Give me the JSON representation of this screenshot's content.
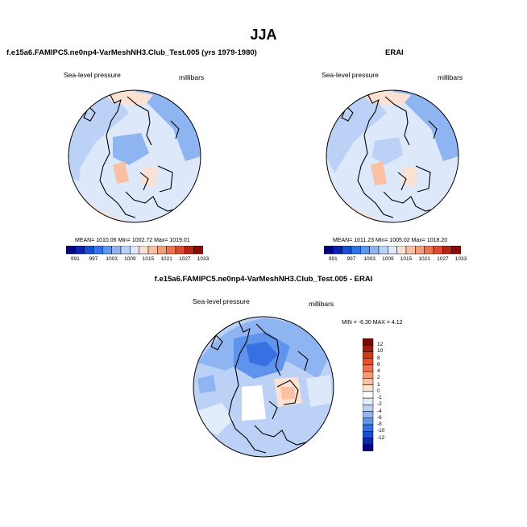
{
  "title": "JJA",
  "colors": {
    "cmap": [
      "#04047e",
      "#0a22b4",
      "#1650d6",
      "#2f73e6",
      "#5f94ee",
      "#8fb4f2",
      "#bcd1f6",
      "#dde8fa",
      "#fbe1d2",
      "#f9c0a4",
      "#f59c78",
      "#ef7350",
      "#dd4a2e",
      "#b52417",
      "#8b0a07"
    ],
    "diff_cmap": [
      "#04047e",
      "#0a2aa8",
      "#1c4fd0",
      "#3670e2",
      "#5f94ee",
      "#8fb4f2",
      "#bcd1f6",
      "#e2ecfb",
      "#ffffff",
      "#fbe1d2",
      "#f9c0a4",
      "#f59c78",
      "#ef7350",
      "#e6502a",
      "#d03a14",
      "#a51a08",
      "#7a0a04"
    ]
  },
  "panels": {
    "model": {
      "title": "f.e15a6.FAMIPC5.ne0np4-VarMeshNH3.Club_Test.005 (yrs 1979-1980)",
      "left_label": "Sea-level pressure",
      "right_label": "millibars",
      "stats": "MEAN= 1010.06   Min= 1002.72   Max= 1019.01",
      "colorbar_ticks": [
        "991",
        "997",
        "1003",
        "1009",
        "1015",
        "1021",
        "1027",
        "1033"
      ]
    },
    "obs": {
      "title": "ERAI",
      "left_label": "Sea-level pressure",
      "right_label": "millibars",
      "stats": "MEAN= 1011.23   Min= 1005.02   Max= 1018.20",
      "colorbar_ticks": [
        "991",
        "997",
        "1003",
        "1009",
        "1015",
        "1021",
        "1027",
        "1033"
      ]
    },
    "diff": {
      "title": "f.e15a6.FAMIPC5.ne0np4-VarMeshNH3.Club_Test.005 - ERAI",
      "left_label": "Sea-level pressure",
      "right_label": "millibars",
      "stats": "MIN =  -6.30  MAX =   4.12",
      "colorbar_ticks": [
        "12",
        "10",
        "8",
        "6",
        "4",
        "2",
        "1",
        "0",
        "-1",
        "-2",
        "-4",
        "-6",
        "-8",
        "-10",
        "-12"
      ]
    }
  }
}
